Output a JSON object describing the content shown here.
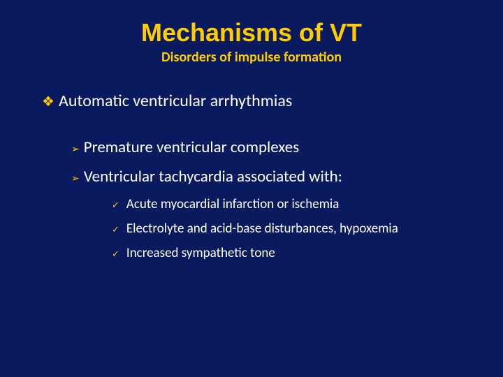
{
  "colors": {
    "background": "#0a1a5e",
    "accent": "#ffcc00",
    "text": "#ffffff"
  },
  "typography": {
    "title_fontsize": 36,
    "title_weight": 700,
    "subtitle_fontsize": 20,
    "subtitle_weight": 700,
    "level1_fontsize": 24,
    "level2_fontsize": 23,
    "level3_fontsize": 19,
    "font_family": "Calibri"
  },
  "bullets": {
    "level1_glyph": "❖",
    "level2_glyph": "➢",
    "level3_glyph": "✓"
  },
  "title": "Mechanisms of VT",
  "subtitle": "Disorders of impulse formation",
  "level1": {
    "text": "Automatic ventricular arrhythmias"
  },
  "level2": {
    "items": [
      {
        "text": "Premature ventricular complexes"
      },
      {
        "text": "Ventricular tachycardia associated with:"
      }
    ]
  },
  "level3": {
    "items": [
      {
        "text": "Acute myocardial infarction or ischemia"
      },
      {
        "text": "Electrolyte and acid-base disturbances, hypoxemia"
      },
      {
        "text": "Increased sympathetic tone"
      }
    ]
  }
}
